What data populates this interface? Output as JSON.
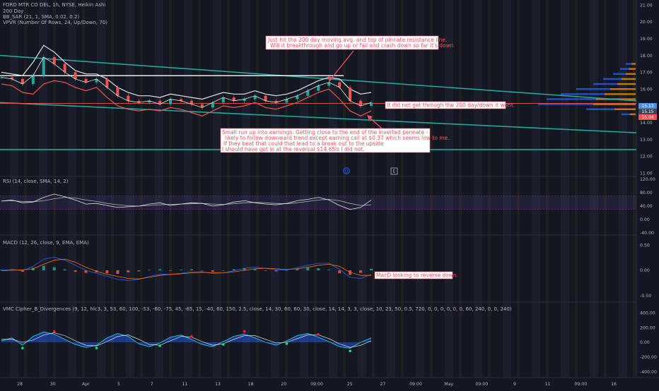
{
  "header": {
    "symbol_line": "FORD MTR CO DEL, 1h, NYSE, Heikin Ashi",
    "ind1": "200 Day",
    "ind2": "BB_SAR (21, 1, SMA, 0.02, 0.2)",
    "ind3": "VPVR (Number Of Rows, 24, Up/Down, 70)"
  },
  "price_axis": {
    "ticks": [
      "21.00",
      "20.00",
      "19.00",
      "18.00",
      "17.00",
      "16.00",
      "15.00",
      "14.00",
      "13.00",
      "12.00",
      "11.00"
    ],
    "badges": [
      "15.13",
      "15.15",
      "15.04"
    ]
  },
  "rsi_pane": {
    "label": "RSI (14, close, SMA, 14, 2)",
    "ticks": [
      "120.00",
      "80.00",
      "40.00",
      "0.00",
      "-40.00"
    ]
  },
  "macd_pane": {
    "label": "MACD (12, 26, close, 9, EMA, EMA)",
    "ticks": [
      "0.50",
      "0.00",
      "-0.50"
    ]
  },
  "vmc_pane": {
    "label": "VMC Cipher_B_Divergences (9, 12, hlc3, 3, 53, 60, 100, -53, -60, -75, 45, -65, 15, -40, 60, 150, 2.5, close, 14, 30, 60, 60, 30, close, 14, 14, 3, 3, close, 10, 23, 50, 0.5, 720, 0, 0, 0, 0, 0, 0, 60, 240, 0, 0, 240)",
    "ticks": [
      "400.00",
      "200.00",
      "0.00",
      "-200.00",
      "-400.00"
    ]
  },
  "time_axis": [
    "28",
    "30",
    "Apr",
    "5",
    "7",
    "11",
    "13",
    "18",
    "20",
    "09:00",
    "25",
    "27",
    "09:00",
    "May",
    "09:00",
    "9",
    "11",
    "09:00",
    "16"
  ],
  "annotations": {
    "a1_line1": "Just hit the 200 day moving avg. and top of pinnate resistance line.",
    "a1_line2": "Will it breakthrough and go up or fail and crash down so far it's down",
    "a2": "It did not get through the 200 day/down it went.",
    "a3_line1": "Small run up into earnings.  Getting close to the end of the inverted pennate -",
    "a3_line2": "likely to follow downward trend except earning call at $0.37 which seems low to me.",
    "a3_line3": "If they beat that could that lead to a break out to the upside",
    "a3_line4": "I should have got in at the reversal $14.65is  I did not.",
    "a4": "MacD looking to reverse down."
  },
  "markers": {
    "d": "D",
    "e": "E"
  },
  "colors": {
    "background": "#131722",
    "teal": "#26a69a",
    "red": "#ef5350",
    "annotation": "#f7525f",
    "blue": "#2962ff"
  },
  "chart_data": [
    {
      "type": "line",
      "title": "FORD MTR CO DEL, 1h, NYSE, Heikin Ashi",
      "y_axis_ticks": [
        21,
        20,
        19,
        18,
        17,
        16,
        15,
        14,
        13,
        12,
        11
      ],
      "ylim": [
        10.8,
        21.3
      ],
      "x_tick_labels": [
        "28",
        "30",
        "Apr",
        "5",
        "7",
        "11",
        "13",
        "18",
        "20",
        "09:00",
        "25",
        "27",
        "09:00",
        "May",
        "09:00",
        "9",
        "11",
        "09:00",
        "16"
      ],
      "series": [
        {
          "name": "",
          "style": "price",
          "values": [
            16.7,
            16.6,
            16.3,
            16.8,
            17.9,
            17.5,
            17.0,
            16.6,
            16.4,
            16.6,
            16.1,
            15.6,
            15.3,
            15.2,
            15.3,
            15.1,
            15.4,
            15.3,
            15.1,
            14.9,
            15.2,
            15.5,
            15.3,
            15.4,
            15.6,
            15.3,
            15.2,
            15.4,
            15.6,
            15.9,
            16.2,
            16.4,
            16.1,
            15.3,
            15.0,
            15.2
          ]
        },
        {
          "name": "",
          "style": "bb_upper",
          "values": [
            17.0,
            16.9,
            16.8,
            17.6,
            18.6,
            18.2,
            17.6,
            17.1,
            16.9,
            16.9,
            16.6,
            16.1,
            15.8,
            15.6,
            15.6,
            15.5,
            15.7,
            15.6,
            15.5,
            15.4,
            15.6,
            15.8,
            15.7,
            15.7,
            15.9,
            15.7,
            15.6,
            15.7,
            15.9,
            16.2,
            16.5,
            16.7,
            16.6,
            16.0,
            15.7,
            15.8
          ]
        },
        {
          "name": "",
          "style": "bb_lower",
          "values": [
            16.3,
            16.2,
            15.8,
            15.7,
            16.3,
            16.5,
            16.4,
            16.1,
            15.9,
            16.1,
            15.5,
            15.0,
            14.8,
            14.7,
            14.8,
            14.7,
            14.9,
            14.8,
            14.6,
            14.4,
            14.7,
            15.0,
            14.9,
            15.0,
            15.2,
            14.9,
            14.8,
            15.0,
            15.2,
            15.5,
            15.8,
            16.0,
            15.4,
            14.7,
            14.4,
            14.7
          ]
        }
      ],
      "lines": [
        {
          "name": "200 Day",
          "from": [
            0,
            18.0
          ],
          "to": [
            1,
            15.3
          ]
        },
        {
          "name": "",
          "from": [
            0,
            15.2
          ],
          "to": [
            1,
            13.4
          ]
        },
        {
          "name": "",
          "from": [
            0,
            16.8
          ],
          "to": [
            0.54,
            16.8
          ]
        },
        {
          "name": "",
          "from": [
            0,
            12.4
          ],
          "to": [
            1,
            12.4
          ]
        },
        {
          "name": "",
          "from": [
            0,
            15.15
          ],
          "to": [
            1,
            15.15
          ]
        }
      ],
      "volume_profile": {
        "levels": [
          17.5,
          17.2,
          16.9,
          16.6,
          16.3,
          16.0,
          15.7,
          15.4,
          15.1,
          14.8,
          14.5
        ],
        "up": [
          8,
          12,
          18,
          26,
          34,
          48,
          62,
          70,
          78,
          40,
          12
        ],
        "down": [
          6,
          10,
          14,
          20,
          26,
          36,
          44,
          56,
          60,
          30,
          8
        ]
      }
    },
    {
      "type": "line",
      "title": "RSI (14, close, SMA, 14, 2)",
      "ylim": [
        -40,
        120
      ],
      "y_axis_ticks": [
        120,
        80,
        40,
        0,
        -40
      ],
      "bands": [
        70,
        30
      ],
      "series": [
        {
          "name": "",
          "values": [
            55,
            58,
            50,
            52,
            66,
            76,
            68,
            58,
            46,
            48,
            42,
            36,
            38,
            40,
            46,
            50,
            42,
            46,
            50,
            48,
            40,
            44,
            52,
            56,
            50,
            46,
            44,
            48,
            56,
            60,
            66,
            58,
            42,
            30,
            36,
            58
          ]
        },
        {
          "name": "",
          "values": [
            55,
            56,
            54,
            53,
            56,
            62,
            66,
            64,
            58,
            54,
            48,
            44,
            41,
            40,
            42,
            44,
            45,
            46,
            47,
            48,
            46,
            45,
            47,
            50,
            51,
            50,
            48,
            47,
            50,
            54,
            58,
            60,
            56,
            48,
            42,
            44
          ]
        }
      ]
    },
    {
      "type": "bar",
      "title": "MACD (12, 26, close, 9, EMA, EMA)",
      "ylim": [
        -0.6,
        0.6
      ],
      "y_axis_ticks": [
        0.5,
        0.0,
        -0.5
      ],
      "histogram": [
        0.01,
        0.02,
        -0.03,
        0.05,
        0.09,
        0.06,
        0.02,
        -0.03,
        -0.05,
        -0.04,
        -0.06,
        -0.07,
        -0.04,
        -0.02,
        0.01,
        0.02,
        -0.01,
        0.01,
        0.02,
        0.0,
        -0.03,
        -0.01,
        0.02,
        0.04,
        0.02,
        -0.01,
        -0.02,
        0.0,
        0.03,
        0.05,
        0.04,
        0.01,
        -0.06,
        -0.09,
        -0.05,
        0.03
      ],
      "series": [
        {
          "name": "",
          "values": [
            0.0,
            0.02,
            -0.01,
            0.08,
            0.22,
            0.26,
            0.2,
            0.1,
            0.0,
            -0.06,
            -0.12,
            -0.18,
            -0.2,
            -0.18,
            -0.12,
            -0.08,
            -0.08,
            -0.06,
            -0.03,
            -0.03,
            -0.06,
            -0.05,
            -0.01,
            0.04,
            0.06,
            0.04,
            0.01,
            0.01,
            0.05,
            0.1,
            0.14,
            0.14,
            0.02,
            -0.14,
            -0.16,
            -0.08
          ]
        },
        {
          "name": "",
          "values": [
            -0.01,
            0.0,
            0.01,
            0.03,
            0.12,
            0.2,
            0.22,
            0.16,
            0.06,
            -0.02,
            -0.08,
            -0.12,
            -0.16,
            -0.17,
            -0.14,
            -0.1,
            -0.08,
            -0.07,
            -0.05,
            -0.04,
            -0.05,
            -0.05,
            -0.03,
            0.0,
            0.03,
            0.04,
            0.03,
            0.02,
            0.03,
            0.06,
            0.1,
            0.12,
            0.08,
            -0.04,
            -0.1,
            -0.1
          ]
        }
      ]
    },
    {
      "type": "area",
      "title": "VMC Cipher_B_Divergences",
      "ylim": [
        -450,
        450
      ],
      "y_axis_ticks": [
        400,
        200,
        0,
        -200,
        -400
      ],
      "series": [
        {
          "name": "",
          "values": [
            20,
            60,
            -40,
            80,
            140,
            110,
            40,
            -30,
            -70,
            -40,
            60,
            120,
            80,
            -20,
            -60,
            -10,
            70,
            100,
            40,
            -30,
            -60,
            10,
            80,
            110,
            60,
            0,
            -40,
            20,
            90,
            120,
            70,
            10,
            -60,
            -80,
            0,
            60
          ]
        },
        {
          "name": "",
          "values": [
            40,
            40,
            0,
            30,
            100,
            130,
            90,
            20,
            -40,
            -50,
            10,
            80,
            100,
            40,
            -30,
            -40,
            20,
            80,
            70,
            10,
            -40,
            -20,
            40,
            90,
            90,
            40,
            -10,
            0,
            50,
            100,
            100,
            50,
            -20,
            -70,
            -40,
            20
          ]
        }
      ],
      "dots_red": [
        5,
        18,
        23,
        30
      ],
      "dots_green": [
        2,
        9,
        15,
        21,
        27,
        33
      ]
    }
  ]
}
